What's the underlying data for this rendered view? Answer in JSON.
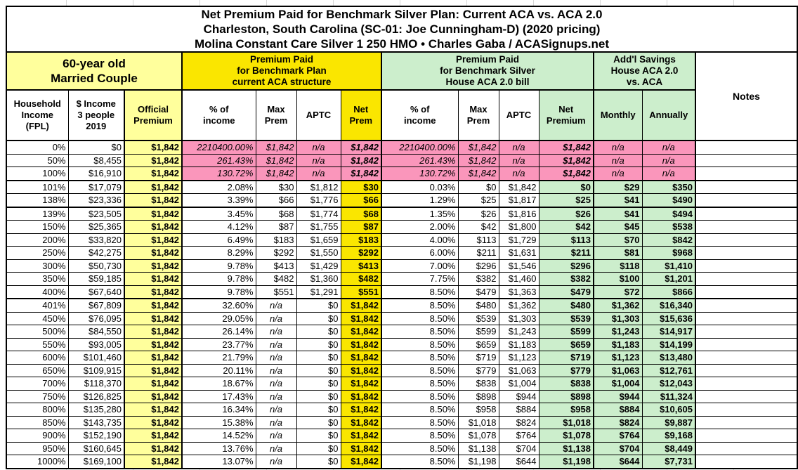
{
  "title": {
    "text": "Net Premium Paid for Benchmark Silver Plan: Current ACA vs. ACA 2.0\nCharleston, South Carolina (SC-01: Joe Cunningham-D) (2020 pricing)\nMolina Constant Care Silver 1 250 HMO • Charles Gaba / ACASignups.net"
  },
  "sections": {
    "profile": "60-year old\nMarried Couple",
    "aca": "Premium Paid\nfor Benchmark Plan\ncurrent ACA structure",
    "aca2": "Premium Paid\nfor Benchmark Silver\nHouse ACA 2.0 bill",
    "savings": "Add'l Savings\nHouse ACA 2.0\nvs. ACA",
    "notes": "Notes"
  },
  "colors": {
    "light_yellow": "#FFFF9C",
    "yellow": "#FAE600",
    "light_green": "#CCEECC",
    "pink": "#FA96BB",
    "border": "#000000"
  },
  "table_meta": {
    "col_names": [
      "fpl",
      "income",
      "official-premium",
      "aca-pct-income",
      "aca-max-prem",
      "aca-aptc",
      "aca-net-prem",
      "aca2-pct-income",
      "aca2-max-prem",
      "aca2-aptc",
      "aca2-net-premium",
      "savings-monthly",
      "savings-annually",
      "notes"
    ],
    "pink_rows": [
      0,
      1,
      2
    ],
    "thick_bottom_rows": [
      2,
      4,
      11,
      24
    ]
  },
  "chart_data": {
    "type": "table",
    "title": "Net Premium Paid for Benchmark Silver Plan: Current ACA vs. ACA 2.0",
    "subtitle": "Charleston, South Carolina (SC-01: Joe Cunningham-D) (2020 pricing)",
    "source": "Molina Constant Care Silver 1 250 HMO • Charles Gaba / ACASignups.net",
    "columns": [
      "Household\nIncome\n(FPL)",
      "$ Income\n3 people\n2019",
      "Official\nPremium",
      "% of\nincome",
      "Max\nPrem",
      "APTC",
      "Net\nPrem",
      "% of\nincome",
      "Max\nPrem",
      "APTC",
      "Net\nPremium",
      "Monthly",
      "Annually"
    ],
    "rows": [
      [
        "0%",
        "$0",
        "$1,842",
        "2210400.00%",
        "$1,842",
        "n/a",
        "$1,842",
        "2210400.00%",
        "$1,842",
        "n/a",
        "$1,842",
        "n/a",
        "n/a"
      ],
      [
        "50%",
        "$8,455",
        "$1,842",
        "261.43%",
        "$1,842",
        "n/a",
        "$1,842",
        "261.43%",
        "$1,842",
        "n/a",
        "$1,842",
        "n/a",
        "n/a"
      ],
      [
        "100%",
        "$16,910",
        "$1,842",
        "130.72%",
        "$1,842",
        "n/a",
        "$1,842",
        "130.72%",
        "$1,842",
        "n/a",
        "$1,842",
        "n/a",
        "n/a"
      ],
      [
        "101%",
        "$17,079",
        "$1,842",
        "2.08%",
        "$30",
        "$1,812",
        "$30",
        "0.03%",
        "$0",
        "$1,842",
        "$0",
        "$29",
        "$350"
      ],
      [
        "138%",
        "$23,336",
        "$1,842",
        "3.39%",
        "$66",
        "$1,776",
        "$66",
        "1.29%",
        "$25",
        "$1,817",
        "$25",
        "$41",
        "$490"
      ],
      [
        "139%",
        "$23,505",
        "$1,842",
        "3.45%",
        "$68",
        "$1,774",
        "$68",
        "1.35%",
        "$26",
        "$1,816",
        "$26",
        "$41",
        "$494"
      ],
      [
        "150%",
        "$25,365",
        "$1,842",
        "4.12%",
        "$87",
        "$1,755",
        "$87",
        "2.00%",
        "$42",
        "$1,800",
        "$42",
        "$45",
        "$538"
      ],
      [
        "200%",
        "$33,820",
        "$1,842",
        "6.49%",
        "$183",
        "$1,659",
        "$183",
        "4.00%",
        "$113",
        "$1,729",
        "$113",
        "$70",
        "$842"
      ],
      [
        "250%",
        "$42,275",
        "$1,842",
        "8.29%",
        "$292",
        "$1,550",
        "$292",
        "6.00%",
        "$211",
        "$1,631",
        "$211",
        "$81",
        "$968"
      ],
      [
        "300%",
        "$50,730",
        "$1,842",
        "9.78%",
        "$413",
        "$1,429",
        "$413",
        "7.00%",
        "$296",
        "$1,546",
        "$296",
        "$118",
        "$1,410"
      ],
      [
        "350%",
        "$59,185",
        "$1,842",
        "9.78%",
        "$482",
        "$1,360",
        "$482",
        "7.75%",
        "$382",
        "$1,460",
        "$382",
        "$100",
        "$1,201"
      ],
      [
        "400%",
        "$67,640",
        "$1,842",
        "9.78%",
        "$551",
        "$1,291",
        "$551",
        "8.50%",
        "$479",
        "$1,363",
        "$479",
        "$72",
        "$866"
      ],
      [
        "401%",
        "$67,809",
        "$1,842",
        "32.60%",
        "n/a",
        "$0",
        "$1,842",
        "8.50%",
        "$480",
        "$1,362",
        "$480",
        "$1,362",
        "$16,340"
      ],
      [
        "450%",
        "$76,095",
        "$1,842",
        "29.05%",
        "n/a",
        "$0",
        "$1,842",
        "8.50%",
        "$539",
        "$1,303",
        "$539",
        "$1,303",
        "$15,636"
      ],
      [
        "500%",
        "$84,550",
        "$1,842",
        "26.14%",
        "n/a",
        "$0",
        "$1,842",
        "8.50%",
        "$599",
        "$1,243",
        "$599",
        "$1,243",
        "$14,917"
      ],
      [
        "550%",
        "$93,005",
        "$1,842",
        "23.77%",
        "n/a",
        "$0",
        "$1,842",
        "8.50%",
        "$659",
        "$1,183",
        "$659",
        "$1,183",
        "$14,199"
      ],
      [
        "600%",
        "$101,460",
        "$1,842",
        "21.79%",
        "n/a",
        "$0",
        "$1,842",
        "8.50%",
        "$719",
        "$1,123",
        "$719",
        "$1,123",
        "$13,480"
      ],
      [
        "650%",
        "$109,915",
        "$1,842",
        "20.11%",
        "n/a",
        "$0",
        "$1,842",
        "8.50%",
        "$779",
        "$1,063",
        "$779",
        "$1,063",
        "$12,761"
      ],
      [
        "700%",
        "$118,370",
        "$1,842",
        "18.67%",
        "n/a",
        "$0",
        "$1,842",
        "8.50%",
        "$838",
        "$1,004",
        "$838",
        "$1,004",
        "$12,043"
      ],
      [
        "750%",
        "$126,825",
        "$1,842",
        "17.43%",
        "n/a",
        "$0",
        "$1,842",
        "8.50%",
        "$898",
        "$944",
        "$898",
        "$944",
        "$11,324"
      ],
      [
        "800%",
        "$135,280",
        "$1,842",
        "16.34%",
        "n/a",
        "$0",
        "$1,842",
        "8.50%",
        "$958",
        "$884",
        "$958",
        "$884",
        "$10,605"
      ],
      [
        "850%",
        "$143,735",
        "$1,842",
        "15.38%",
        "n/a",
        "$0",
        "$1,842",
        "8.50%",
        "$1,018",
        "$824",
        "$1,018",
        "$824",
        "$9,887"
      ],
      [
        "900%",
        "$152,190",
        "$1,842",
        "14.52%",
        "n/a",
        "$0",
        "$1,842",
        "8.50%",
        "$1,078",
        "$764",
        "$1,078",
        "$764",
        "$9,168"
      ],
      [
        "950%",
        "$160,645",
        "$1,842",
        "13.76%",
        "n/a",
        "$0",
        "$1,842",
        "8.50%",
        "$1,138",
        "$704",
        "$1,138",
        "$704",
        "$8,449"
      ],
      [
        "1000%",
        "$169,100",
        "$1,842",
        "13.07%",
        "n/a",
        "$0",
        "$1,842",
        "8.50%",
        "$1,198",
        "$644",
        "$1,198",
        "$644",
        "$7,731"
      ]
    ]
  }
}
